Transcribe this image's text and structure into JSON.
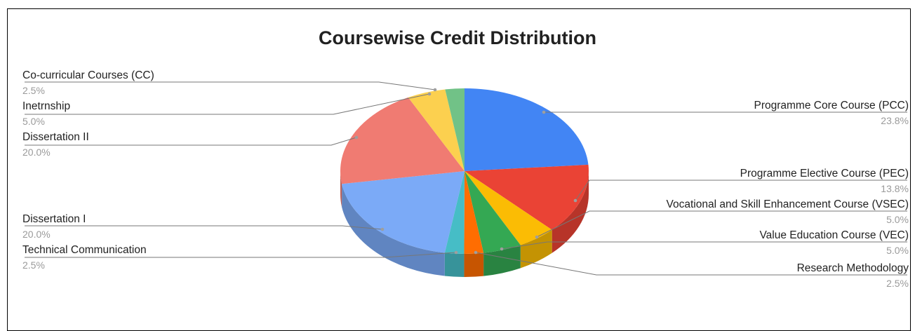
{
  "chart_data": {
    "type": "pie",
    "title": "Coursewise Credit Distribution",
    "slices": [
      {
        "label": "Programme Core Course (PCC)",
        "value": 23.8,
        "pct_text": "23.8%",
        "color": "#4285f4"
      },
      {
        "label": "Programme Elective Course (PEC)",
        "value": 13.8,
        "pct_text": "13.8%",
        "color": "#ea4335"
      },
      {
        "label": "Vocational and Skill Enhancement Course (VSEC)",
        "value": 5.0,
        "pct_text": "5.0%",
        "color": "#fbbc04"
      },
      {
        "label": "Value Education Course (VEC)",
        "value": 5.0,
        "pct_text": "5.0%",
        "color": "#34a853"
      },
      {
        "label": "Research Methodology",
        "value": 2.5,
        "pct_text": "2.5%",
        "color": "#ff6d01"
      },
      {
        "label": "Technical Communication",
        "value": 2.5,
        "pct_text": "2.5%",
        "color": "#46bdc6"
      },
      {
        "label": "Dissertation I",
        "value": 20.0,
        "pct_text": "20.0%",
        "color": "#7baaf7"
      },
      {
        "label": "Dissertation II",
        "value": 20.0,
        "pct_text": "20.0%",
        "color": "#f07b72"
      },
      {
        "label": "Inetrnship",
        "value": 5.0,
        "pct_text": "5.0%",
        "color": "#fcd04f"
      },
      {
        "label": "Co-curricular Courses (CC)",
        "value": 2.5,
        "pct_text": "2.5%",
        "color": "#71c287"
      }
    ]
  }
}
